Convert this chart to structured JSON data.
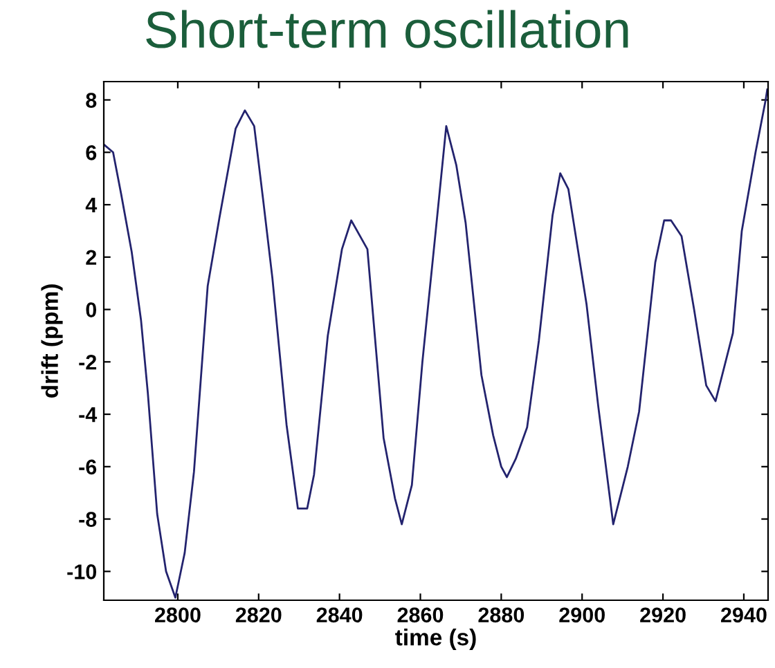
{
  "chart_data": {
    "type": "line",
    "title": "Short-term oscillation",
    "xlabel": "time (s)",
    "ylabel": "drift (ppm)",
    "x": [
      2781.7,
      2784,
      2786,
      2788.6,
      2790.9,
      2792.6,
      2794.9,
      2797.1,
      2799.4,
      2801.7,
      2804,
      2807.4,
      2810.3,
      2814.3,
      2816.6,
      2818.9,
      2821.1,
      2823.4,
      2826.9,
      2829.7,
      2832,
      2833.7,
      2837.1,
      2840.6,
      2842.9,
      2846.9,
      2850.9,
      2853.7,
      2855.4,
      2857.9,
      2860.5,
      2863.8,
      2866.4,
      2868.9,
      2871.2,
      2875.1,
      2878,
      2880,
      2881.4,
      2883.6,
      2886.4,
      2889.3,
      2892.7,
      2894.6,
      2896.6,
      2901.1,
      2904,
      2907.7,
      2911.3,
      2914.1,
      2918.1,
      2920.3,
      2922,
      2924.6,
      2927.7,
      2930.7,
      2933,
      2937.3,
      2939.5,
      2942.9,
      2945.4,
      2945.8
    ],
    "series": [
      {
        "color": "#23236e",
        "values": [
          6.3,
          6.0,
          4.4,
          2.2,
          -0.4,
          -3.2,
          -7.8,
          -10.0,
          -11.0,
          -9.3,
          -6.2,
          0.9,
          3.5,
          6.9,
          7.6,
          7.0,
          4.2,
          1.2,
          -4.4,
          -7.6,
          -7.6,
          -6.3,
          -1.0,
          2.3,
          3.4,
          2.3,
          -4.9,
          -7.2,
          -8.2,
          -6.7,
          -2.0,
          3.0,
          7.0,
          5.5,
          3.3,
          -2.5,
          -4.8,
          -6.0,
          -6.4,
          -5.7,
          -4.5,
          -1.2,
          3.6,
          5.2,
          4.6,
          0.2,
          -3.7,
          -8.2,
          -6.0,
          -3.9,
          1.8,
          3.4,
          3.4,
          2.8,
          0.0,
          -2.9,
          -3.5,
          -0.9,
          3.0,
          6.0,
          8.0,
          8.4
        ]
      }
    ],
    "xlim": [
      2781.7,
      2946
    ],
    "ylim": [
      -11.1,
      8.7
    ],
    "xticks": [
      2800,
      2820,
      2840,
      2860,
      2880,
      2900,
      2920,
      2940
    ],
    "yticks": [
      -10,
      -8,
      -6,
      -4,
      -2,
      0,
      2,
      4,
      6,
      8
    ],
    "grid": false,
    "legend": false,
    "line_style": "solid",
    "marker": "none"
  }
}
